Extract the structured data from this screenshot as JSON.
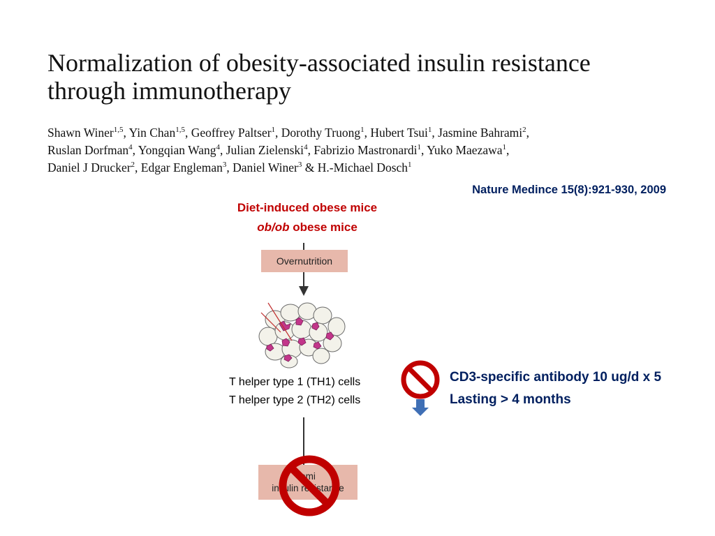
{
  "paper": {
    "title_line1": "Normalization of obesity-associated insulin resistance",
    "title_line2": "through immunotherapy",
    "authors": [
      {
        "name": "Shawn Winer",
        "sup": "1,5",
        "sep": ", "
      },
      {
        "name": "Yin Chan",
        "sup": "1,5",
        "sep": ", "
      },
      {
        "name": "Geoffrey Paltser",
        "sup": "1",
        "sep": ", "
      },
      {
        "name": "Dorothy Truong",
        "sup": "1",
        "sep": ", "
      },
      {
        "name": "Hubert Tsui",
        "sup": "1",
        "sep": ", "
      },
      {
        "name": "Jasmine Bahrami",
        "sup": "2",
        "sep": ", "
      },
      {
        "name": "Ruslan Dorfman",
        "sup": "4",
        "sep": ", "
      },
      {
        "name": "Yongqian Wang",
        "sup": "4",
        "sep": ", "
      },
      {
        "name": "Julian Zielenski",
        "sup": "4",
        "sep": ", "
      },
      {
        "name": "Fabrizio Mastronardi",
        "sup": "1",
        "sep": ", "
      },
      {
        "name": "Yuko Maezawa",
        "sup": "1",
        "sep": ", "
      },
      {
        "name": "Daniel J Drucker",
        "sup": "2",
        "sep": ", "
      },
      {
        "name": "Edgar Engleman",
        "sup": "3",
        "sep": ", "
      },
      {
        "name": "Daniel Winer",
        "sup": "3",
        "sep": " & "
      },
      {
        "name": "H.-Michael Dosch",
        "sup": "1",
        "sep": ""
      }
    ],
    "citation": "Nature Medince  15(8):921-930, 2009"
  },
  "diagram": {
    "mice_line1": "Diet-induced obese mice",
    "mice_line2_italic": "ob/ob",
    "mice_line2_rest": " obese mice",
    "box_top": "Overnutrition",
    "tcell_line1": "T helper type 1 (TH1) cells",
    "tcell_line2": "T helper type 2 (TH2) cells",
    "box_bottom_line1": "emi",
    "box_bottom_line2": "insulin resistance",
    "treatment_line1": "CD3-specific antibody 10 ug/d x 5",
    "treatment_line2": "Lasting > 4 months"
  },
  "colors": {
    "mice_text": "#c00000",
    "treatment_text": "#001f5f",
    "citation_text": "#001f5f",
    "prohibition": "#c00000",
    "box_fill": "#e7b8ab",
    "arrow_blue": "#3f6fb5"
  },
  "icons": [
    "prohibition-sign-icon",
    "prohibition-sign-icon",
    "down-arrow-icon",
    "adipose-tissue-illustration"
  ]
}
